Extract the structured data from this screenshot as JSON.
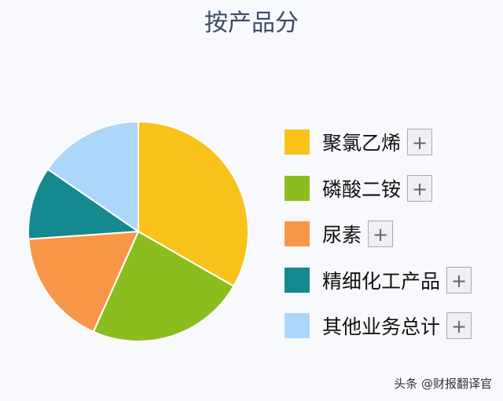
{
  "chart_data": {
    "type": "pie",
    "title": "按产品分",
    "categories": [
      "聚氯乙烯",
      "磷酸二铵",
      "尿素",
      "精细化工产品",
      "其他业务总计"
    ],
    "values": [
      33.3,
      23.4,
      17.2,
      10.7,
      15.4
    ],
    "colors": [
      "#f8c21a",
      "#8cbd1e",
      "#f89648",
      "#14898f",
      "#add6fb"
    ],
    "legend": "right",
    "legend_button": "+"
  },
  "watermark": "头条 @财报翻译官"
}
